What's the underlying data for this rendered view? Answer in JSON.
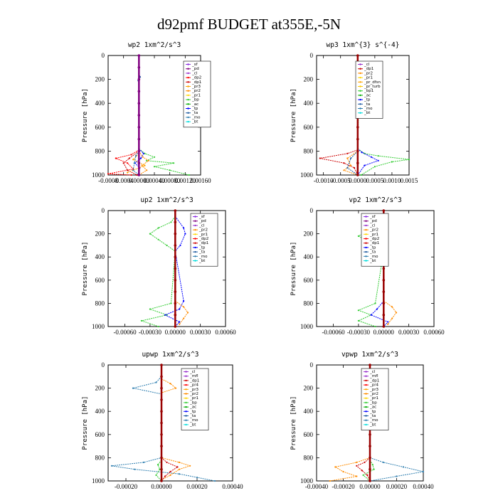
{
  "page_title": "d92pmf  BUDGET at355E,-5N",
  "colors": {
    "sf": "#8a2be2",
    "pd": "#800080",
    "cl": "#9932cc",
    "dp2": "#ff0000",
    "dp1": "#cc0000",
    "pr3": "#ffa500",
    "pr2": "#ff8c00",
    "pr1": "#ffd700",
    "bp": "#33cc33",
    "ac": "#00aa00",
    "tp": "#0000ff",
    "ta": "#1e5aa0",
    "mo": "#2f7fb0",
    "bt": "#00dddd",
    "mfl": "#9932cc",
    "pr4": "#ff0000",
    "bp1": "#33cc33",
    "pr_dfsn": "#ffa500",
    "pr_turb": "#ffcc00",
    "dark": "#990000"
  },
  "chart_data": [
    {
      "id": "wp2",
      "type": "line",
      "title": "wp2   1xm^2/s^3",
      "ylabel": "Pressure  [hPa]",
      "xlim": [
        -0.0008,
        0.0016
      ],
      "ylim": [
        1000,
        0
      ],
      "xticklabels": [
        "-0.0008",
        "-0.0004",
        "0.00000",
        "0.00040",
        "0.00080",
        "0.00120",
        "0.00160"
      ],
      "xticks": [
        -0.0008,
        -0.0004,
        0,
        0.0004,
        0.0008,
        0.0012,
        0.0016
      ],
      "yticks": [
        0,
        200,
        400,
        600,
        800,
        1000
      ],
      "legend": [
        "_sf",
        "_pd",
        "_cl",
        "_dp2",
        "_dp1",
        "_pr3",
        "_pr2",
        "_pr1",
        "_bp",
        "_ac",
        "_tp",
        "_ta",
        "_mo",
        "_bt"
      ],
      "series": [
        {
          "name": "_bp",
          "key": "bp",
          "p": [
            780,
            820,
            850,
            880,
            900,
            930,
            960,
            1000
          ],
          "v": [
            0,
            0.00015,
            0.0004,
            0.0002,
            0.0009,
            0.0004,
            0.0008,
            0.0013
          ]
        },
        {
          "name": "_tp",
          "key": "tp",
          "p": [
            780,
            820,
            860,
            900,
            940,
            1000
          ],
          "v": [
            0,
            0.00012,
            5e-05,
            -0.0001,
            2e-05,
            0
          ]
        },
        {
          "name": "_pr2",
          "key": "pr2",
          "p": [
            800,
            850,
            880,
            920,
            960,
            1000
          ],
          "v": [
            0,
            0.0001,
            0.00025,
            8e-05,
            0.0002,
            0
          ]
        },
        {
          "name": "_dp2",
          "key": "dp2",
          "p": [
            790,
            830,
            860,
            900,
            950,
            990,
            1000
          ],
          "v": [
            0,
            -0.0002,
            -0.0006,
            -0.0003,
            -0.00015,
            -0.0008,
            -0.0002
          ]
        },
        {
          "name": "_dp1",
          "key": "dp1",
          "p": [
            800,
            860,
            900,
            960,
            1000
          ],
          "v": [
            0,
            -0.00025,
            -0.0004,
            -0.0003,
            -5e-05
          ]
        },
        {
          "name": "_pr3",
          "key": "pr3",
          "p": [
            820,
            870,
            920,
            980
          ],
          "v": [
            0,
            -0.00015,
            0.00015,
            -0.0003
          ]
        },
        {
          "name": "_mo",
          "key": "mo",
          "p": [
            800,
            840,
            900,
            960,
            1000
          ],
          "v": [
            0,
            -8e-05,
            -0.00012,
            -0.00015,
            0
          ]
        },
        {
          "name": "_bt",
          "key": "bt",
          "p": [
            0,
            200,
            400,
            600,
            800,
            1000
          ],
          "v": [
            0,
            0,
            0,
            0,
            0,
            0
          ]
        },
        {
          "name": "_ta",
          "key": "ta",
          "p": [
            150,
            180,
            210,
            240,
            1000
          ],
          "v": [
            0,
            3e-05,
            -2e-05,
            0,
            0
          ]
        },
        {
          "name": "_pd",
          "key": "pd",
          "p": [
            0,
            100,
            200,
            300,
            400,
            500,
            600,
            700,
            800,
            900,
            1000
          ],
          "v": [
            0,
            0,
            0,
            0,
            0,
            0,
            0,
            0,
            0,
            0,
            0
          ]
        }
      ]
    },
    {
      "id": "wp3",
      "type": "line",
      "title": "wp3   1xm^{3} s^{-4}",
      "ylabel": "Pressure  [hPa]",
      "xlim": [
        -0.0012,
        0.0015
      ],
      "ylim": [
        1000,
        0
      ],
      "xticklabels": [
        "-0.0010",
        "-0.0005",
        "0.0000",
        "0.0005",
        "0.0010",
        "0.0015"
      ],
      "xticks": [
        -0.001,
        -0.0005,
        0,
        0.0005,
        0.001,
        0.0015
      ],
      "yticks": [
        0,
        200,
        400,
        600,
        800,
        1000
      ],
      "legend": [
        "_cl",
        "_dp1",
        "_pr2",
        "_pr1",
        "_pr_dfsn",
        "_pr_turb",
        "_bp1",
        "_ac",
        "_tp",
        "_ta",
        "_mo",
        "_bt"
      ],
      "series": [
        {
          "name": "_bp1",
          "key": "bp1",
          "p": [
            780,
            820,
            840,
            870,
            890,
            930,
            1000
          ],
          "v": [
            0,
            0.0002,
            0.0006,
            0.0015,
            0.001,
            0.0005,
            0.0001
          ]
        },
        {
          "name": "_tp",
          "key": "tp",
          "p": [
            780,
            810,
            850,
            880,
            920,
            1000
          ],
          "v": [
            0,
            0.00012,
            0.0004,
            0.0006,
            0.0002,
            0
          ]
        },
        {
          "name": "_dp1",
          "key": "dp1",
          "p": [
            790,
            820,
            860,
            900,
            940,
            1000
          ],
          "v": [
            0,
            -0.0003,
            -0.0011,
            -0.0004,
            -0.0001,
            0
          ]
        },
        {
          "name": "_pr2",
          "key": "pr2",
          "p": [
            800,
            860,
            920,
            960,
            1000
          ],
          "v": [
            0,
            -0.0003,
            -0.0002,
            -0.0004,
            0
          ]
        },
        {
          "name": "_ta",
          "key": "ta",
          "p": [
            800,
            860,
            940,
            1000
          ],
          "v": [
            0,
            -0.0002,
            -0.0003,
            0
          ]
        },
        {
          "name": "_ac",
          "key": "ac",
          "p": [
            500,
            520,
            1000
          ],
          "v": [
            0,
            2e-05,
            0
          ]
        },
        {
          "name": "_cl",
          "key": "dark",
          "p": [
            0,
            100,
            200,
            300,
            400,
            500,
            600,
            700,
            800,
            900,
            1000
          ],
          "v": [
            0,
            0,
            0,
            0,
            0,
            0,
            0,
            0,
            0,
            0,
            0
          ]
        }
      ]
    },
    {
      "id": "up2",
      "type": "line",
      "title": "up2   1xm^2/s^3",
      "ylabel": "Pressure  [hPa]",
      "xlim": [
        -0.0008,
        0.0006
      ],
      "ylim": [
        1000,
        0
      ],
      "xticklabels": [
        "-0.00060",
        "-0.00030",
        "0.00000",
        "0.00030",
        "0.00060"
      ],
      "xticks": [
        -0.0006,
        -0.0003,
        0,
        0.0003,
        0.0006
      ],
      "yticks": [
        0,
        200,
        400,
        600,
        800,
        1000
      ],
      "legend": [
        "_sf",
        "_pd",
        "_cl",
        "_pr2",
        "_pr1",
        "_dp2",
        "_dp1",
        "_tp",
        "_ta",
        "_mo",
        "_bt"
      ],
      "series": [
        {
          "name": "_dp1",
          "key": "bp",
          "p": [
            50,
            100,
            150,
            200,
            250,
            300,
            350,
            800,
            850,
            900,
            950,
            1000
          ],
          "v": [
            0,
            -5e-05,
            -0.0002,
            -0.0003,
            -0.0002,
            -0.0001,
            0,
            -5e-05,
            -0.0003,
            -0.0001,
            -0.0004,
            -0.0002
          ]
        },
        {
          "name": "_tp",
          "key": "tp",
          "p": [
            50,
            150,
            200,
            300,
            350,
            780,
            850,
            900,
            960,
            1000
          ],
          "v": [
            0,
            0.0001,
            0.00012,
            6e-05,
            0,
            0.0001,
            5e-05,
            -0.00012,
            5e-05,
            0
          ]
        },
        {
          "name": "_pr2",
          "key": "pr2",
          "p": [
            780,
            830,
            880,
            930,
            980
          ],
          "v": [
            0,
            0.0001,
            0.00015,
            0.0001,
            5e-05
          ]
        },
        {
          "name": "_cl",
          "key": "dark",
          "p": [
            0,
            100,
            200,
            300,
            400,
            500,
            600,
            700,
            800,
            900,
            1000
          ],
          "v": [
            0,
            0,
            0,
            0,
            0,
            0,
            0,
            0,
            0,
            0,
            0
          ]
        }
      ]
    },
    {
      "id": "vp2",
      "type": "line",
      "title": "vp2   1xm^2/s^3",
      "ylabel": "Pressure  [hPa]",
      "xlim": [
        -0.0008,
        0.0006
      ],
      "ylim": [
        1000,
        0
      ],
      "xticklabels": [
        "-0.00060",
        "-0.00030",
        "0.00000",
        "0.00030",
        "0.00060"
      ],
      "xticks": [
        -0.0006,
        -0.0003,
        0,
        0.0003,
        0.0006
      ],
      "yticks": [
        0,
        200,
        400,
        600,
        800,
        1000
      ],
      "legend": [
        "_sf",
        "_pd",
        "_cl",
        "_pr2",
        "_pr1",
        "_dp2",
        "_dp1",
        "_tp",
        "_ta",
        "_mo",
        "_bt"
      ],
      "series": [
        {
          "name": "_dp1",
          "key": "bp",
          "p": [
            60,
            120,
            180,
            220,
            260,
            320,
            350,
            800,
            860,
            900,
            950,
            1000
          ],
          "v": [
            0,
            -5e-05,
            -0.0002,
            -0.0003,
            -0.0002,
            -0.0001,
            0,
            -0.0001,
            -0.0003,
            -0.00015,
            -0.0003,
            -0.0001
          ]
        },
        {
          "name": "_tp",
          "key": "tp",
          "p": [
            780,
            850,
            900,
            960,
            1000
          ],
          "v": [
            0,
            -8e-05,
            -0.00015,
            5e-05,
            0
          ]
        },
        {
          "name": "_pr2",
          "key": "pr2",
          "p": [
            780,
            830,
            880,
            930,
            980
          ],
          "v": [
            0,
            0.0001,
            0.00015,
            0.0001,
            5e-05
          ]
        },
        {
          "name": "_cl",
          "key": "dark",
          "p": [
            0,
            100,
            200,
            300,
            400,
            500,
            600,
            700,
            800,
            900,
            1000
          ],
          "v": [
            0,
            0,
            0,
            0,
            0,
            0,
            0,
            0,
            0,
            0,
            0
          ]
        }
      ]
    },
    {
      "id": "upwp",
      "type": "line",
      "title": "upwp   1xm^2/s^3",
      "ylabel": "Pressure  [hPa]",
      "xlim": [
        -0.0003,
        0.0004
      ],
      "ylim": [
        1000,
        0
      ],
      "xticklabels": [
        "-0.00020",
        "0.00000",
        "0.00020",
        "0.00040"
      ],
      "xticks": [
        -0.0002,
        0,
        0.0002,
        0.0004
      ],
      "yticks": [
        0,
        200,
        400,
        600,
        800,
        1000
      ],
      "legend": [
        "_cl",
        "_mfl",
        "_dp1",
        "_pr4",
        "_pr3",
        "_pr2",
        "_pr1",
        "_bp",
        "_ac",
        "_tp",
        "_ta",
        "_mo",
        "_bt"
      ],
      "series": [
        {
          "name": "_mo",
          "key": "mo",
          "p": [
            100,
            150,
            200,
            250,
            800,
            840,
            870,
            900,
            940,
            970,
            1000
          ],
          "v": [
            0,
            -3e-05,
            -0.00016,
            0,
            0,
            -0.0001,
            -0.00028,
            -0.00015,
            0.0001,
            0.0002,
            0.0003
          ]
        },
        {
          "name": "_pr2",
          "key": "pr2",
          "p": [
            120,
            160,
            200,
            240,
            800,
            840,
            870,
            900,
            950,
            990
          ],
          "v": [
            0,
            5e-05,
            8e-05,
            0,
            0,
            0.0001,
            0.00016,
            0.0001,
            5e-05,
            0
          ]
        },
        {
          "name": "_dp1",
          "key": "dp1",
          "p": [
            800,
            840,
            880,
            920,
            960,
            1000
          ],
          "v": [
            0,
            3e-05,
            9e-05,
            5e-05,
            2e-05,
            0
          ]
        },
        {
          "name": "_bp",
          "key": "bp",
          "p": [
            820,
            860,
            900,
            950,
            1000
          ],
          "v": [
            0,
            -2e-05,
            -1e-05,
            -3e-05,
            0
          ]
        },
        {
          "name": "_cl",
          "key": "dark",
          "p": [
            0,
            100,
            200,
            300,
            400,
            500,
            600,
            700,
            800,
            900,
            1000
          ],
          "v": [
            0,
            0,
            0,
            0,
            0,
            0,
            0,
            0,
            0,
            0,
            0
          ]
        }
      ]
    },
    {
      "id": "vpwp",
      "type": "line",
      "title": "vpwp   1xm^2/s^3",
      "ylabel": "Pressure  [hPa]",
      "xlim": [
        -0.0004,
        0.0004
      ],
      "ylim": [
        1000,
        0
      ],
      "xticklabels": [
        "-0.00040",
        "-0.00020",
        "0.00000",
        "0.00020",
        "0.00040"
      ],
      "xticks": [
        -0.0004,
        -0.0002,
        0,
        0.0002,
        0.0004
      ],
      "yticks": [
        0,
        200,
        400,
        600,
        800,
        1000
      ],
      "legend": [
        "_cl",
        "_mfl",
        "_dp1",
        "_pr4",
        "_pr3",
        "_pr2",
        "_pr1",
        "_bp",
        "_ac",
        "_tp",
        "_ta",
        "_mo",
        "_bt"
      ],
      "series": [
        {
          "name": "_mo",
          "key": "mo",
          "p": [
            120,
            150,
            200,
            240,
            800,
            840,
            880,
            920,
            960,
            1000
          ],
          "v": [
            0,
            -5e-05,
            -6e-05,
            0,
            0,
            0.0001,
            0.00025,
            0.0004,
            0.0002,
            0
          ]
        },
        {
          "name": "_pr2",
          "key": "pr2",
          "p": [
            120,
            160,
            200,
            240,
            800,
            840,
            880,
            920,
            960,
            1000
          ],
          "v": [
            0,
            3e-05,
            2e-05,
            0,
            0,
            -0.0001,
            -0.00026,
            -0.0002,
            -0.0001,
            -0.0003
          ]
        },
        {
          "name": "_dp1",
          "key": "dp1",
          "p": [
            800,
            840,
            870,
            910,
            950,
            1000
          ],
          "v": [
            0,
            -4e-05,
            -0.0001,
            -6e-05,
            -2e-05,
            0
          ]
        },
        {
          "name": "_bp",
          "key": "bp",
          "p": [
            820,
            860,
            900,
            950,
            1000
          ],
          "v": [
            0,
            2e-05,
            3e-05,
            -5e-05,
            0
          ]
        },
        {
          "name": "_cl",
          "key": "dark",
          "p": [
            0,
            100,
            200,
            300,
            400,
            500,
            600,
            700,
            800,
            900,
            1000
          ],
          "v": [
            0,
            0,
            0,
            0,
            0,
            0,
            0,
            0,
            0,
            0,
            0
          ]
        }
      ]
    }
  ]
}
